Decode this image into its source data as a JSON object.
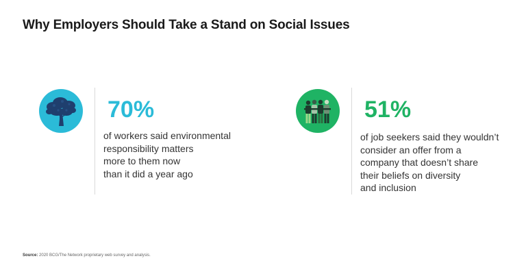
{
  "title": "Why Employers Should Take a Stand on Social Issues",
  "stats": [
    {
      "value": "70%",
      "lines": [
        "of workers said environmental",
        "responsibility matters",
        "more to them now",
        "than it did a year ago"
      ],
      "icon": "tree-icon",
      "circle_color": "#2bbbd8",
      "value_color": "#2bbbd8"
    },
    {
      "value": "51%",
      "lines": [
        "of job seekers said they wouldn’t",
        "consider an offer from a",
        "company that doesn’t share",
        "their beliefs on diversity",
        "and inclusion"
      ],
      "icon": "people-group-icon",
      "circle_color": "#1fb364",
      "value_color": "#1fb364"
    }
  ],
  "source": {
    "label": "Source:",
    "text": "2020 BCG/The Network proprietary web survey and analysis."
  }
}
